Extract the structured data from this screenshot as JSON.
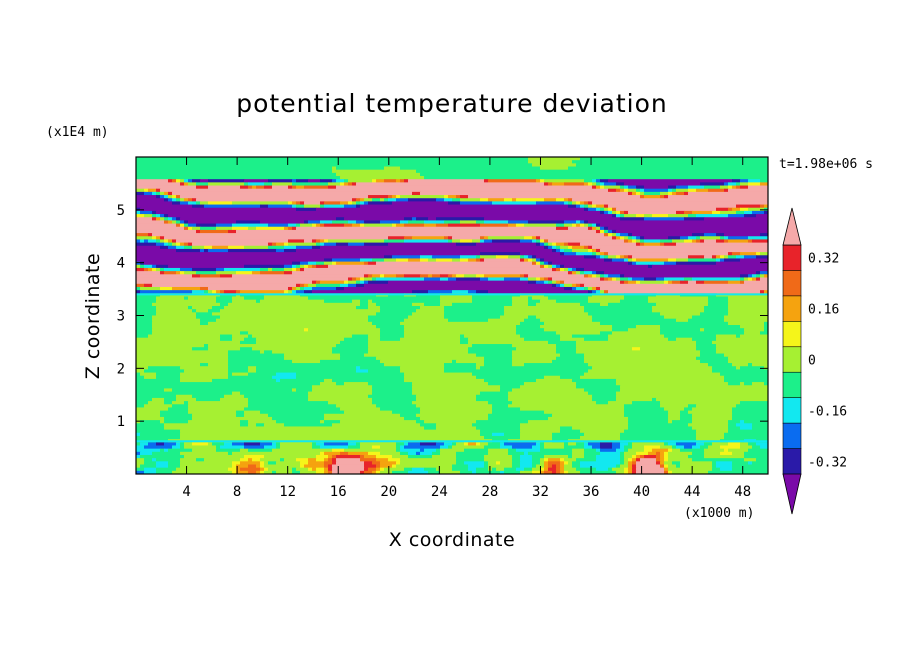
{
  "chart_data": {
    "type": "heatmap",
    "title": "potential temperature deviation",
    "xlabel": "X coordinate",
    "ylabel": "Z coordinate",
    "x_unit": "(x1000 m)",
    "y_unit": "(x1E4 m)",
    "time_label": "t=1.98e+06 s",
    "xlim": [
      0,
      50
    ],
    "ylim": [
      0,
      6
    ],
    "x_ticks": [
      "4",
      "8",
      "12",
      "16",
      "20",
      "24",
      "28",
      "32",
      "36",
      "40",
      "44",
      "48"
    ],
    "y_ticks": [
      "1",
      "2",
      "3",
      "4",
      "5"
    ],
    "colorbar": {
      "tick_labels": [
        "0.32",
        "0.16",
        "0",
        "-0.16",
        "-0.32"
      ],
      "tick_values": [
        0.32,
        0.16,
        0,
        -0.16,
        -0.32
      ],
      "levels": [
        -0.4,
        -0.32,
        -0.24,
        -0.16,
        -0.08,
        0,
        0.08,
        0.16,
        0.24,
        0.32,
        0.4
      ],
      "colors": [
        "#7a0aa8",
        "#2a1aa8",
        "#0a6cf0",
        "#12e8f0",
        "#1cf08a",
        "#a6f032",
        "#f5f51a",
        "#f5a30f",
        "#f06a18",
        "#e8232a",
        "#f5a9a9"
      ]
    },
    "regions": [
      {
        "z_range": [
          5.5,
          6.0
        ],
        "description": "mostly near zero"
      },
      {
        "z_range": [
          3.4,
          5.5
        ],
        "description": "alternating layers of strong positive (above 0.4) and strong negative (below -0.4)"
      },
      {
        "z_range": [
          0.6,
          3.4
        ],
        "description": "near zero, weakly positive"
      },
      {
        "z_range": [
          0.0,
          0.6
        ],
        "description": "mixed, with positive maxima near x=16, 33 and 40"
      }
    ],
    "grid": false
  },
  "colors": {
    "frame": "#000000",
    "background": "#ffffff"
  }
}
